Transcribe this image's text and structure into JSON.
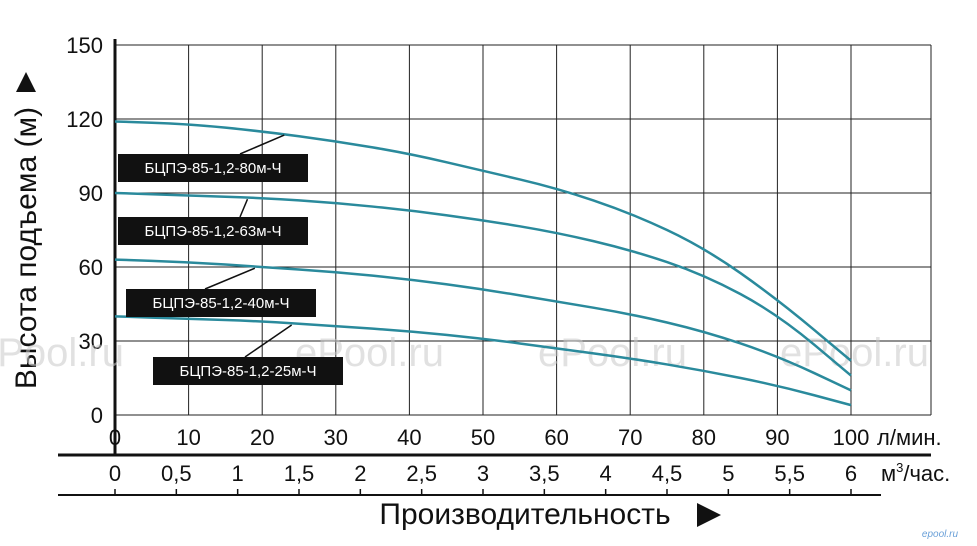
{
  "chart_data": {
    "type": "line",
    "ylabel": "Высота подъема (м)",
    "xlabel": "Производительность",
    "ylim": [
      0,
      150
    ],
    "yticks": [
      0,
      30,
      60,
      90,
      120,
      150
    ],
    "x_primary": {
      "unit": "л/мин.",
      "range": [
        0,
        100
      ],
      "ticks": [
        "0",
        "10",
        "20",
        "30",
        "40",
        "50",
        "60",
        "70",
        "80",
        "90",
        "100"
      ]
    },
    "x_secondary": {
      "unit_base": "м",
      "unit_sup": "3",
      "unit_suffix": "/час.",
      "ticks": [
        "0",
        "0,5",
        "1",
        "1,5",
        "2",
        "2,5",
        "3",
        "3,5",
        "4",
        "4,5",
        "5",
        "5,5",
        "6"
      ]
    },
    "grid": true,
    "series": [
      {
        "name": "БЦПЭ-85-1,2-80м-Ч",
        "color": "#2a8a9c",
        "x": [
          0,
          10,
          20,
          30,
          40,
          50,
          60,
          70,
          80,
          90,
          100
        ],
        "y": [
          119,
          118,
          115,
          111,
          106,
          99,
          92,
          82,
          68,
          47,
          22
        ]
      },
      {
        "name": "БЦПЭ-85-1,2-63м-Ч",
        "color": "#2a8a9c",
        "x": [
          0,
          10,
          20,
          30,
          40,
          50,
          60,
          70,
          80,
          90,
          100
        ],
        "y": [
          90,
          89,
          88,
          86,
          83,
          79,
          74,
          67,
          57,
          41,
          16
        ]
      },
      {
        "name": "БЦПЭ-85-1,2-40м-Ч",
        "color": "#2a8a9c",
        "x": [
          0,
          10,
          20,
          30,
          40,
          50,
          60,
          70,
          80,
          90,
          100
        ],
        "y": [
          63,
          62,
          60,
          58,
          55,
          51,
          46,
          41,
          34,
          24,
          10
        ]
      },
      {
        "name": "БЦПЭ-85-1,2-25м-Ч",
        "color": "#2a8a9c",
        "x": [
          0,
          10,
          20,
          30,
          40,
          50,
          60,
          70,
          80,
          90,
          100
        ],
        "y": [
          40,
          39,
          38,
          36,
          34,
          31,
          27,
          23,
          18,
          12,
          4
        ]
      }
    ]
  },
  "watermark": "ePool.ru",
  "corner_logo": "epool.ru"
}
